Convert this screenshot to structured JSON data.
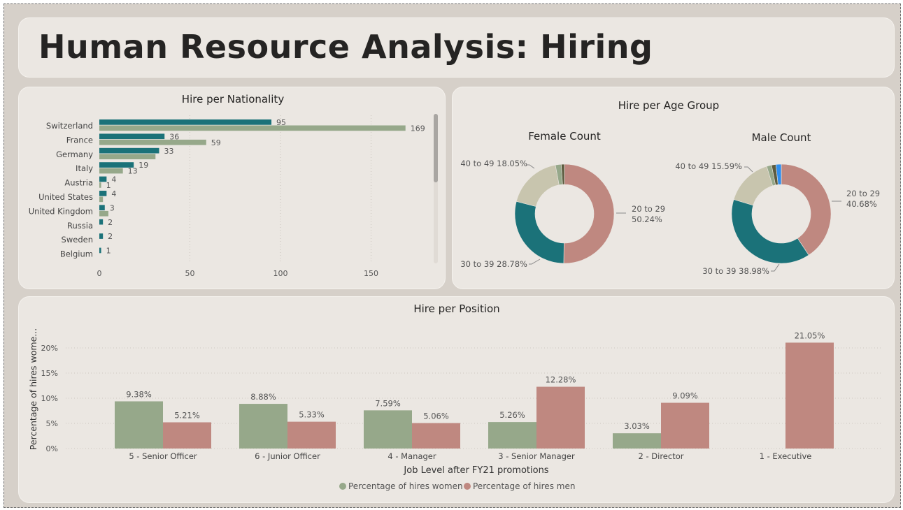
{
  "page": {
    "title": "Human Resource Analysis: Hiring"
  },
  "colors": {
    "teal": "#1b7279",
    "sage": "#96a88a",
    "rose": "#bf8880",
    "beige": "#c8c5ae",
    "dark_olive": "#5c5c3f",
    "blue": "#2f8fee",
    "card_bg": "#ebe7e2",
    "canvas_bg": "#d6d0c9"
  },
  "chart_data": [
    {
      "id": "nationality",
      "type": "bar",
      "orientation": "horizontal",
      "title": "Hire per Nationality",
      "categories": [
        "Switzerland",
        "France",
        "Germany",
        "Italy",
        "Austria",
        "United States",
        "United Kingdom",
        "Russia",
        "Sweden",
        "Belgium"
      ],
      "series": [
        {
          "values": [
            95,
            36,
            33,
            19,
            4,
            4,
            3,
            2,
            2,
            1
          ],
          "labels": [
            "95",
            "36",
            "33",
            "19",
            "4",
            "4",
            "3",
            "2",
            "2",
            "1"
          ],
          "color": "#1b7279"
        },
        {
          "values": [
            169,
            59,
            31,
            13,
            1,
            2,
            5,
            null,
            null,
            null
          ],
          "labels": [
            "169",
            "59",
            "",
            "13",
            "1",
            "",
            "",
            "",
            "",
            ""
          ],
          "color": "#96a88a"
        }
      ],
      "xticks": [
        "0",
        "50",
        "100",
        "150"
      ],
      "xlim": [
        0,
        185
      ],
      "grid": true
    },
    {
      "id": "age_female",
      "type": "pie",
      "donut": true,
      "title": "Hire per Age Group",
      "subtitle": "Female Count",
      "slices": [
        {
          "name": "20 to 29",
          "value": 50.24,
          "color": "#bf8880",
          "label": "20 to 29 50.24%"
        },
        {
          "name": "30 to 39",
          "value": 28.78,
          "color": "#1b7279",
          "label": "30 to 39 28.78%"
        },
        {
          "name": "40 to 49",
          "value": 18.05,
          "color": "#c8c5ae",
          "label": "40 to 49 18.05%"
        },
        {
          "name": "",
          "value": 1.9,
          "color": "#96a88a",
          "label": ""
        },
        {
          "name": "",
          "value": 1.03,
          "color": "#5c5c3f",
          "label": ""
        }
      ]
    },
    {
      "id": "age_male",
      "type": "pie",
      "donut": true,
      "subtitle": "Male Count",
      "slices": [
        {
          "name": "20 to 29",
          "value": 40.68,
          "color": "#bf8880",
          "label": "20 to 29 40.68%"
        },
        {
          "name": "30 to 39",
          "value": 38.98,
          "color": "#1b7279",
          "label": "30 to 39 38.98%"
        },
        {
          "name": "40 to 49",
          "value": 15.59,
          "color": "#c8c5ae",
          "label": "40 to 49 15.59%"
        },
        {
          "name": "",
          "value": 1.6,
          "color": "#96a88a",
          "label": ""
        },
        {
          "name": "",
          "value": 1.4,
          "color": "#5c5c3f",
          "label": ""
        },
        {
          "name": "",
          "value": 1.75,
          "color": "#2f8fee",
          "label": ""
        }
      ]
    },
    {
      "id": "position",
      "type": "bar",
      "title": "Hire per Position",
      "xlabel": "Job Level after FY21 promotions",
      "ylabel": "Percentage of hires wome...",
      "categories": [
        "5 - Senior Officer",
        "6 - Junior Officer",
        "4 - Manager",
        "3 - Senior Manager",
        "2 - Director",
        "1 - Executive"
      ],
      "series": [
        {
          "name": "Percentage of hires women",
          "values": [
            9.38,
            8.88,
            7.59,
            5.26,
            3.03,
            null
          ],
          "labels": [
            "9.38%",
            "8.88%",
            "7.59%",
            "5.26%",
            "3.03%",
            ""
          ],
          "color": "#96a88a"
        },
        {
          "name": "Percentage of hires men",
          "values": [
            5.21,
            5.33,
            5.06,
            12.28,
            9.09,
            21.05
          ],
          "labels": [
            "5.21%",
            "5.33%",
            "5.06%",
            "12.28%",
            "9.09%",
            "21.05%"
          ],
          "color": "#bf8880"
        }
      ],
      "yticks": [
        "0%",
        "5%",
        "10%",
        "15%",
        "20%"
      ],
      "ylim": [
        0,
        22.5
      ],
      "legend": "bottom-center",
      "grid": true
    }
  ]
}
